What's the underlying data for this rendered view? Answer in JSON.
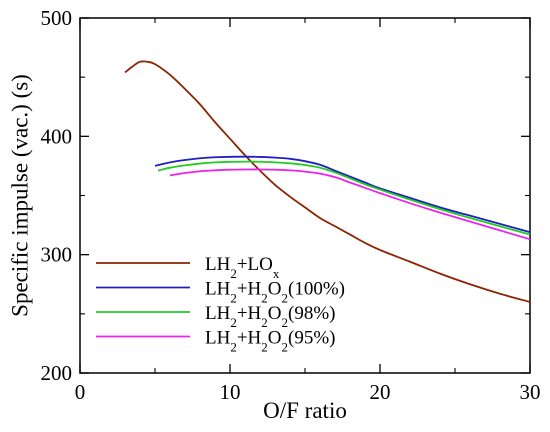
{
  "chart_data": {
    "type": "line",
    "xlabel": "O/F ratio",
    "ylabel": "Specific impulse (vac.) (s)",
    "xlim": [
      0,
      30
    ],
    "ylim": [
      200,
      500
    ],
    "xticks": [
      0,
      10,
      20,
      30
    ],
    "yticks": [
      200,
      300,
      400,
      500
    ],
    "xtick_labels": [
      "0",
      "10",
      "20",
      "30"
    ],
    "ytick_labels": [
      "200",
      "300",
      "400",
      "500"
    ],
    "grid": false,
    "legend_position": "lower-left",
    "series": [
      {
        "name": "LH2+LOx",
        "label_parts": [
          {
            "t": "LH"
          },
          {
            "t": "2",
            "sub": true
          },
          {
            "t": "+LO"
          },
          {
            "t": "x",
            "sub": true
          }
        ],
        "color": "#8B2500",
        "x": [
          3,
          3.5,
          4,
          4.5,
          5,
          6,
          7,
          8,
          9,
          10,
          11,
          12,
          13,
          14,
          15,
          16,
          17,
          18,
          19,
          20,
          22,
          24,
          26,
          28,
          30
        ],
        "y": [
          454,
          459,
          463,
          463,
          461,
          452,
          440,
          427,
          412,
          398,
          384,
          371,
          359,
          349,
          340,
          331,
          324,
          317,
          310,
          304,
          294,
          284,
          275,
          267,
          260
        ]
      },
      {
        "name": "LH2+H2O2(100%)",
        "label_parts": [
          {
            "t": "LH"
          },
          {
            "t": "2",
            "sub": true
          },
          {
            "t": "+H"
          },
          {
            "t": "2",
            "sub": true
          },
          {
            "t": "O"
          },
          {
            "t": "2",
            "sub": true
          },
          {
            "t": "(100%)"
          }
        ],
        "color": "#2020C0",
        "x": [
          5,
          6,
          7,
          8,
          9,
          10,
          11,
          12,
          13,
          14,
          15,
          16,
          17,
          18,
          19,
          20,
          22,
          24,
          26,
          28,
          30
        ],
        "y": [
          375,
          378,
          380,
          381.5,
          382.3,
          382.7,
          382.8,
          382.6,
          382,
          381,
          379,
          376,
          371,
          366,
          361,
          356,
          348,
          340,
          333,
          326,
          319
        ]
      },
      {
        "name": "LH2+H2O2(98%)",
        "label_parts": [
          {
            "t": "LH"
          },
          {
            "t": "2",
            "sub": true
          },
          {
            "t": "+H"
          },
          {
            "t": "2",
            "sub": true
          },
          {
            "t": "O"
          },
          {
            "t": "2",
            "sub": true
          },
          {
            "t": "(98%)"
          }
        ],
        "color": "#22CC22",
        "x": [
          5.2,
          6,
          7,
          8,
          9,
          10,
          11,
          12,
          13,
          14,
          15,
          16,
          17,
          18,
          19,
          20,
          22,
          24,
          26,
          28,
          30
        ],
        "y": [
          371,
          373.5,
          375.5,
          377,
          378,
          378.4,
          378.6,
          378.5,
          378,
          377.2,
          375.8,
          373.5,
          369.5,
          364.5,
          359.5,
          355,
          346.5,
          338.5,
          331,
          324,
          317
        ]
      },
      {
        "name": "LH2+H2O2(95%)",
        "label_parts": [
          {
            "t": "LH"
          },
          {
            "t": "2",
            "sub": true
          },
          {
            "t": "+H"
          },
          {
            "t": "2",
            "sub": true
          },
          {
            "t": "O"
          },
          {
            "t": "2",
            "sub": true
          },
          {
            "t": "(95%)"
          }
        ],
        "color": "#EE22EE",
        "x": [
          6,
          7,
          8,
          9,
          10,
          11,
          12,
          13,
          14,
          15,
          16,
          17,
          18,
          19,
          20,
          22,
          24,
          26,
          28,
          30
        ],
        "y": [
          367,
          369,
          370.5,
          371.3,
          371.8,
          372,
          372,
          371.8,
          371.2,
          370.2,
          368.5,
          365.5,
          361,
          356.5,
          352,
          343.5,
          335.5,
          328,
          320.5,
          313
        ]
      }
    ]
  }
}
